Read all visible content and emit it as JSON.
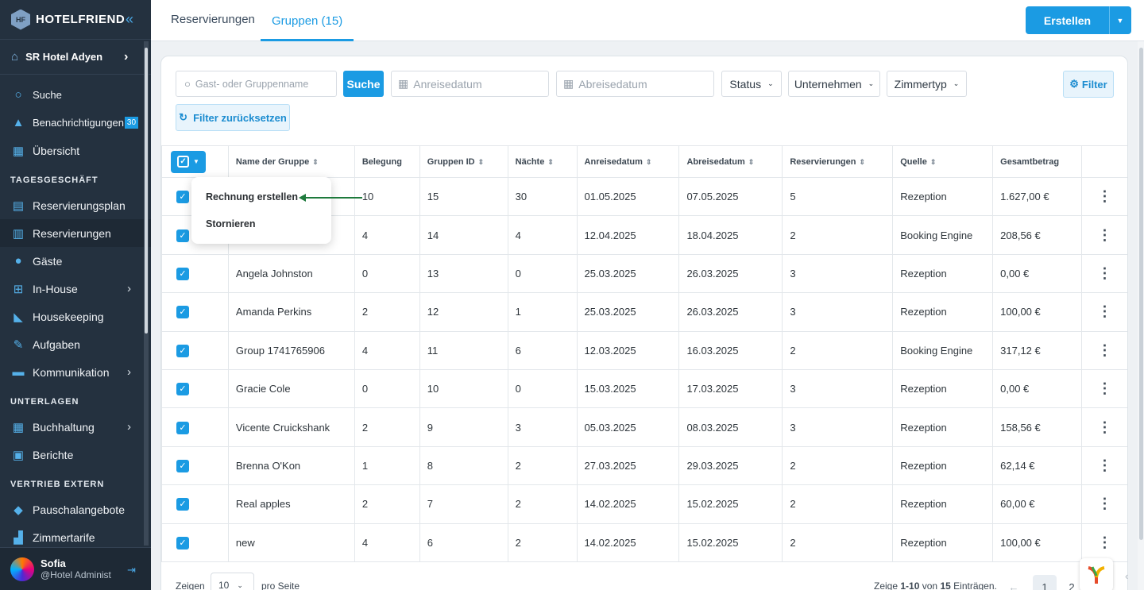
{
  "app": {
    "brand": "HOTELFRIEND",
    "brand_mark": "HF"
  },
  "sidebar": {
    "hotel_name": "SR Hotel Adyen",
    "items_top": [
      {
        "label": "Suche",
        "icon": "search-icon"
      },
      {
        "label": "Benachrichtigungen",
        "icon": "bell-icon",
        "badge": "30"
      },
      {
        "label": "Übersicht",
        "icon": "dashboard-icon"
      }
    ],
    "section_1": "TAGESGESCHÄFT",
    "items_1": [
      {
        "label": "Reservierungsplan",
        "icon": "calendar-plan-icon"
      },
      {
        "label": "Reservierungen",
        "icon": "document-icon"
      },
      {
        "label": "Gäste",
        "icon": "person-icon"
      },
      {
        "label": "In-House",
        "icon": "cart-icon"
      },
      {
        "label": "Housekeeping",
        "icon": "broom-icon"
      },
      {
        "label": "Aufgaben",
        "icon": "wrench-icon"
      },
      {
        "label": "Kommunikation",
        "icon": "chat-icon"
      }
    ],
    "section_2": "UNTERLAGEN",
    "items_2": [
      {
        "label": "Buchhaltung",
        "icon": "accounting-icon"
      },
      {
        "label": "Berichte",
        "icon": "report-icon"
      }
    ],
    "section_3": "VERTRIEB EXTERN",
    "items_3": [
      {
        "label": "Pauschalangebote",
        "icon": "tag-icon"
      },
      {
        "label": "Zimmertarife",
        "icon": "chart-icon"
      }
    ],
    "user": {
      "name": "Sofia",
      "role": "@Hotel Administ"
    }
  },
  "topbar": {
    "tabs": [
      {
        "label": "Reservierungen"
      },
      {
        "label": "Gruppen (15)"
      }
    ],
    "create_label": "Erstellen"
  },
  "filters": {
    "search_placeholder": "Gast- oder Gruppenname",
    "search_button": "Suche",
    "arrival_placeholder": "Anreisedatum",
    "departure_placeholder": "Abreisedatum",
    "status": "Status",
    "company": "Unternehmen",
    "room_type": "Zimmertyp",
    "filter_button": "Filter",
    "reset_button": "Filter zurücksetzen"
  },
  "table": {
    "columns": [
      "Name der Gruppe",
      "Belegung",
      "Gruppen ID",
      "Nächte",
      "Anreisedatum",
      "Abreisedatum",
      "Reservierungen",
      "Quelle",
      "Gesamtbetrag"
    ],
    "rows": [
      {
        "name": "",
        "occupancy": "10",
        "id": "15",
        "nights": "30",
        "arrival": "01.05.2025",
        "departure": "07.05.2025",
        "reservations": "5",
        "source": "Rezeption",
        "total": "1.627,00 €"
      },
      {
        "name": "",
        "occupancy": "4",
        "id": "14",
        "nights": "4",
        "arrival": "12.04.2025",
        "departure": "18.04.2025",
        "reservations": "2",
        "source": "Booking Engine",
        "total": "208,56 €"
      },
      {
        "name": "Angela Johnston",
        "occupancy": "0",
        "id": "13",
        "nights": "0",
        "arrival": "25.03.2025",
        "departure": "26.03.2025",
        "reservations": "3",
        "source": "Rezeption",
        "total": "0,00 €"
      },
      {
        "name": "Amanda Perkins",
        "occupancy": "2",
        "id": "12",
        "nights": "1",
        "arrival": "25.03.2025",
        "departure": "26.03.2025",
        "reservations": "3",
        "source": "Rezeption",
        "total": "100,00 €"
      },
      {
        "name": "Group 1741765906",
        "occupancy": "4",
        "id": "11",
        "nights": "6",
        "arrival": "12.03.2025",
        "departure": "16.03.2025",
        "reservations": "2",
        "source": "Booking Engine",
        "total": "317,12 €"
      },
      {
        "name": "Gracie Cole",
        "occupancy": "0",
        "id": "10",
        "nights": "0",
        "arrival": "15.03.2025",
        "departure": "17.03.2025",
        "reservations": "3",
        "source": "Rezeption",
        "total": "0,00 €"
      },
      {
        "name": "Vicente Cruickshank",
        "occupancy": "2",
        "id": "9",
        "nights": "3",
        "arrival": "05.03.2025",
        "departure": "08.03.2025",
        "reservations": "3",
        "source": "Rezeption",
        "total": "158,56 €"
      },
      {
        "name": "Brenna O'Kon",
        "occupancy": "1",
        "id": "8",
        "nights": "2",
        "arrival": "27.03.2025",
        "departure": "29.03.2025",
        "reservations": "2",
        "source": "Rezeption",
        "total": "62,14 €"
      },
      {
        "name": "Real apples",
        "occupancy": "2",
        "id": "7",
        "nights": "2",
        "arrival": "14.02.2025",
        "departure": "15.02.2025",
        "reservations": "2",
        "source": "Rezeption",
        "total": "60,00 €"
      },
      {
        "name": "new",
        "occupancy": "4",
        "id": "6",
        "nights": "2",
        "arrival": "14.02.2025",
        "departure": "15.02.2025",
        "reservations": "2",
        "source": "Rezeption",
        "total": "100,00 €"
      }
    ]
  },
  "bulk_menu": {
    "items": [
      "Rechnung erstellen",
      "Stornieren"
    ]
  },
  "footer": {
    "show_label": "Zeigen",
    "page_size": "10",
    "per_page": "pro Seite",
    "summary_prefix": "Zeige",
    "summary_range": "1-10",
    "summary_of": "von",
    "summary_total": "15",
    "summary_suffix": "Einträgen.",
    "pages": [
      "1",
      "2"
    ]
  },
  "colors": {
    "accent": "#1b9be3",
    "sidebar": "#24313f",
    "arrow": "#1e7a3c"
  }
}
